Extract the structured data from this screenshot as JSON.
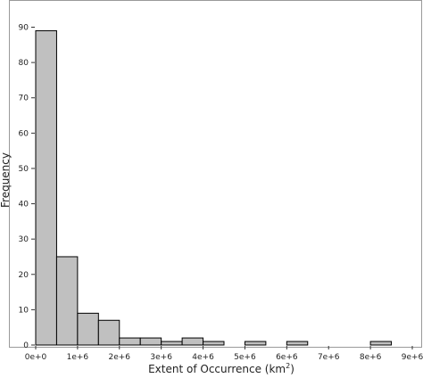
{
  "chart_data": {
    "type": "bar",
    "subtype": "histogram",
    "xlabel": "Extent of Occurrence (km",
    "xlabel_sup": "2",
    "xlabel_close": ")",
    "ylabel": "Frequency",
    "bin_width": 500000,
    "bins": [
      {
        "start": 0,
        "end": 500000,
        "count": 89
      },
      {
        "start": 500000,
        "end": 1000000,
        "count": 25
      },
      {
        "start": 1000000,
        "end": 1500000,
        "count": 9
      },
      {
        "start": 1500000,
        "end": 2000000,
        "count": 7
      },
      {
        "start": 2000000,
        "end": 2500000,
        "count": 2
      },
      {
        "start": 2500000,
        "end": 3000000,
        "count": 2
      },
      {
        "start": 3000000,
        "end": 3500000,
        "count": 1
      },
      {
        "start": 3500000,
        "end": 4000000,
        "count": 2
      },
      {
        "start": 4000000,
        "end": 4500000,
        "count": 1
      },
      {
        "start": 4500000,
        "end": 5000000,
        "count": 0
      },
      {
        "start": 5000000,
        "end": 5500000,
        "count": 1
      },
      {
        "start": 5500000,
        "end": 6000000,
        "count": 0
      },
      {
        "start": 6000000,
        "end": 6500000,
        "count": 1
      },
      {
        "start": 6500000,
        "end": 7000000,
        "count": 0
      },
      {
        "start": 7000000,
        "end": 7500000,
        "count": 0
      },
      {
        "start": 7500000,
        "end": 8000000,
        "count": 0
      },
      {
        "start": 8000000,
        "end": 8500000,
        "count": 1
      }
    ],
    "xlim": [
      0,
      9000000
    ],
    "ylim": [
      0,
      90
    ],
    "x_ticks": [
      {
        "value": 0,
        "label": "0e+0"
      },
      {
        "value": 1000000,
        "label": "1e+6"
      },
      {
        "value": 2000000,
        "label": "2e+6"
      },
      {
        "value": 3000000,
        "label": "3e+6"
      },
      {
        "value": 4000000,
        "label": "4e+6"
      },
      {
        "value": 5000000,
        "label": "5e+6"
      },
      {
        "value": 6000000,
        "label": "6e+6"
      },
      {
        "value": 7000000,
        "label": "7e+6"
      },
      {
        "value": 8000000,
        "label": "8e+6"
      },
      {
        "value": 9000000,
        "label": "9e+6"
      }
    ],
    "y_ticks": [
      {
        "value": 0,
        "label": "0"
      },
      {
        "value": 10,
        "label": "10"
      },
      {
        "value": 20,
        "label": "20"
      },
      {
        "value": 30,
        "label": "30"
      },
      {
        "value": 40,
        "label": "40"
      },
      {
        "value": 50,
        "label": "50"
      },
      {
        "value": 60,
        "label": "60"
      },
      {
        "value": 70,
        "label": "70"
      },
      {
        "value": 80,
        "label": "80"
      },
      {
        "value": 90,
        "label": "90"
      }
    ],
    "bar_fill": "#c0c0c0",
    "bar_stroke": "#000000",
    "grid": false,
    "legend": "none"
  }
}
